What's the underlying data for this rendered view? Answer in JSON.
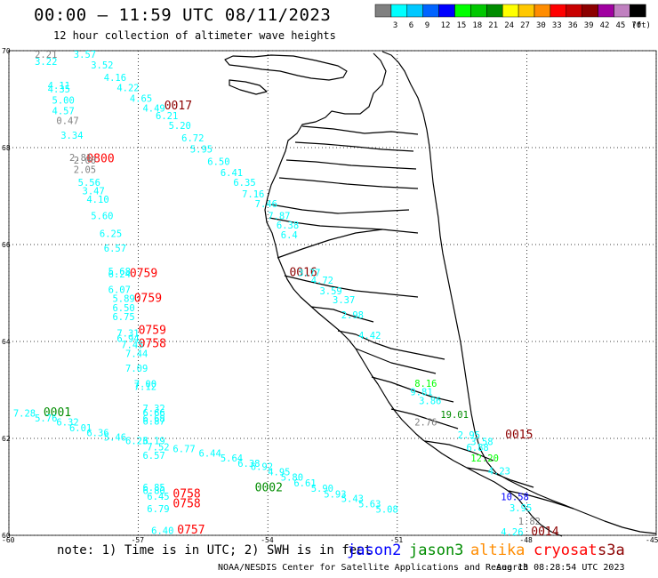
{
  "header": {
    "title": "00:00 – 11:59 UTC 08/11/2023",
    "subtitle": "12 hour collection of altimeter wave heights"
  },
  "colorbar": {
    "unit": "(ft)",
    "bins": [
      {
        "label": "",
        "color": "#808080"
      },
      {
        "label": "3",
        "color": "#00ffff"
      },
      {
        "label": "6",
        "color": "#00c8ff"
      },
      {
        "label": "9",
        "color": "#0064ff"
      },
      {
        "label": "12",
        "color": "#0000ff"
      },
      {
        "label": "15",
        "color": "#00ff00"
      },
      {
        "label": "18",
        "color": "#00c800"
      },
      {
        "label": "21",
        "color": "#008c00"
      },
      {
        "label": "24",
        "color": "#ffff00"
      },
      {
        "label": "27",
        "color": "#ffc800"
      },
      {
        "label": "30",
        "color": "#ff8c00"
      },
      {
        "label": "33",
        "color": "#ff0000"
      },
      {
        "label": "36",
        "color": "#c80000"
      },
      {
        "label": "39",
        "color": "#8c0000"
      },
      {
        "label": "42",
        "color": "#a000a0"
      },
      {
        "label": "45",
        "color": "#c080c0"
      },
      {
        "label": "70",
        "color": "#000000"
      }
    ]
  },
  "map": {
    "lon_range": [
      -60,
      -45
    ],
    "lat_range": [
      60,
      70
    ],
    "lat_ticks": [
      "70",
      "68",
      "66",
      "64",
      "62",
      "60"
    ],
    "lon_ticks": [
      "-60",
      "-57",
      "-54",
      "-51",
      "-48",
      "-45"
    ],
    "grid": "dotted"
  },
  "chart_data": {
    "type": "scatter",
    "time_labels": [
      {
        "text": "0017",
        "lon": -56.4,
        "lat": 68.86,
        "color": "#8c0000"
      },
      {
        "text": "0800",
        "lon": -58.2,
        "lat": 67.77,
        "color": "#ff0000"
      },
      {
        "text": "0016",
        "lon": -53.5,
        "lat": 65.42,
        "color": "#8c0000"
      },
      {
        "text": "0759",
        "lon": -57.2,
        "lat": 65.4,
        "color": "#ff0000"
      },
      {
        "text": "0759",
        "lon": -57.1,
        "lat": 64.89,
        "color": "#ff0000"
      },
      {
        "text": "0759",
        "lon": -57.0,
        "lat": 64.23,
        "color": "#ff0000"
      },
      {
        "text": "0758",
        "lon": -57.0,
        "lat": 63.95,
        "color": "#ff0000"
      },
      {
        "text": "0001",
        "lon": -59.2,
        "lat": 62.53,
        "color": "#008c00"
      },
      {
        "text": "0015",
        "lon": -48.5,
        "lat": 62.07,
        "color": "#8c0000"
      },
      {
        "text": "0002",
        "lon": -54.3,
        "lat": 60.98,
        "color": "#008c00"
      },
      {
        "text": "0758",
        "lon": -56.2,
        "lat": 60.85,
        "color": "#ff0000"
      },
      {
        "text": "0758",
        "lon": -56.2,
        "lat": 60.65,
        "color": "#ff0000"
      },
      {
        "text": "0757",
        "lon": -56.1,
        "lat": 60.11,
        "color": "#ff0000"
      },
      {
        "text": "0014",
        "lon": -47.9,
        "lat": 60.07,
        "color": "#8c0000"
      }
    ],
    "points": [
      {
        "v": "2.21",
        "lon": -59.4,
        "lat": 69.93,
        "c": "#808080"
      },
      {
        "v": "3.57",
        "lon": -58.5,
        "lat": 69.93,
        "c": "#00ffff"
      },
      {
        "v": "3.22",
        "lon": -59.4,
        "lat": 69.78,
        "c": "#00ffff"
      },
      {
        "v": "3.52",
        "lon": -58.1,
        "lat": 69.71,
        "c": "#00ffff"
      },
      {
        "v": "4.16",
        "lon": -57.8,
        "lat": 69.45,
        "c": "#00ffff"
      },
      {
        "v": "4.11",
        "lon": -59.1,
        "lat": 69.28,
        "c": "#00ffff"
      },
      {
        "v": "4.22",
        "lon": -57.5,
        "lat": 69.24,
        "c": "#00ffff"
      },
      {
        "v": "4.35",
        "lon": -59.1,
        "lat": 69.21,
        "c": "#00ffff"
      },
      {
        "v": "5.00",
        "lon": -59.0,
        "lat": 68.98,
        "c": "#00ffff"
      },
      {
        "v": "4.65",
        "lon": -57.2,
        "lat": 69.02,
        "c": "#00ffff"
      },
      {
        "v": "4.49",
        "lon": -56.9,
        "lat": 68.82,
        "c": "#00ffff"
      },
      {
        "v": "4.57",
        "lon": -59.0,
        "lat": 68.76,
        "c": "#00ffff"
      },
      {
        "v": "6.21",
        "lon": -56.6,
        "lat": 68.66,
        "c": "#00ffff"
      },
      {
        "v": "0.47",
        "lon": -58.9,
        "lat": 68.56,
        "c": "#808080"
      },
      {
        "v": "5.20",
        "lon": -56.3,
        "lat": 68.46,
        "c": "#00ffff"
      },
      {
        "v": "3.34",
        "lon": -58.8,
        "lat": 68.26,
        "c": "#00ffff"
      },
      {
        "v": "6.72",
        "lon": -56.0,
        "lat": 68.2,
        "c": "#00ffff"
      },
      {
        "v": "5.95",
        "lon": -55.8,
        "lat": 67.97,
        "c": "#00ffff"
      },
      {
        "v": "2.81",
        "lon": -58.6,
        "lat": 67.8,
        "c": "#808080"
      },
      {
        "v": "2.00",
        "lon": -58.5,
        "lat": 67.74,
        "c": "#808080"
      },
      {
        "v": "6.50",
        "lon": -55.4,
        "lat": 67.72,
        "c": "#00ffff"
      },
      {
        "v": "2.05",
        "lon": -58.5,
        "lat": 67.55,
        "c": "#808080"
      },
      {
        "v": "6.41",
        "lon": -55.1,
        "lat": 67.49,
        "c": "#00ffff"
      },
      {
        "v": "5.56",
        "lon": -58.4,
        "lat": 67.28,
        "c": "#00ffff"
      },
      {
        "v": "6.35",
        "lon": -54.8,
        "lat": 67.28,
        "c": "#00ffff"
      },
      {
        "v": "3.47",
        "lon": -58.3,
        "lat": 67.11,
        "c": "#00ffff"
      },
      {
        "v": "7.16",
        "lon": -54.6,
        "lat": 67.05,
        "c": "#00ffff"
      },
      {
        "v": "4.10",
        "lon": -58.2,
        "lat": 66.94,
        "c": "#00ffff"
      },
      {
        "v": "7.46",
        "lon": -54.3,
        "lat": 66.84,
        "c": "#00ffff"
      },
      {
        "v": "5.60",
        "lon": -58.1,
        "lat": 66.6,
        "c": "#00ffff"
      },
      {
        "v": "7.87",
        "lon": -54.0,
        "lat": 66.6,
        "c": "#00ffff"
      },
      {
        "v": "6.38",
        "lon": -53.8,
        "lat": 66.4,
        "c": "#00ffff"
      },
      {
        "v": "6.25",
        "lon": -57.9,
        "lat": 66.23,
        "c": "#00ffff"
      },
      {
        "v": "6.4",
        "lon": -53.7,
        "lat": 66.2,
        "c": "#00ffff"
      },
      {
        "v": "6.57",
        "lon": -57.8,
        "lat": 65.93,
        "c": "#00ffff"
      },
      {
        "v": "5.68",
        "lon": -57.7,
        "lat": 65.45,
        "c": "#00ffff"
      },
      {
        "v": "6.24",
        "lon": -57.7,
        "lat": 65.39,
        "c": "#00ffff"
      },
      {
        "v": "6.07",
        "lon": -57.7,
        "lat": 65.07,
        "c": "#00ffff"
      },
      {
        "v": "5.89",
        "lon": -57.6,
        "lat": 64.89,
        "c": "#00ffff"
      },
      {
        "v": "6.50",
        "lon": -57.6,
        "lat": 64.7,
        "c": "#00ffff"
      },
      {
        "v": "6.75",
        "lon": -57.6,
        "lat": 64.51,
        "c": "#00ffff"
      },
      {
        "v": "7.31",
        "lon": -57.5,
        "lat": 64.17,
        "c": "#00ffff"
      },
      {
        "v": "6.94",
        "lon": -57.5,
        "lat": 64.06,
        "c": "#00ffff"
      },
      {
        "v": "7.45",
        "lon": -57.4,
        "lat": 63.94,
        "c": "#00ffff"
      },
      {
        "v": "7.44",
        "lon": -57.3,
        "lat": 63.75,
        "c": "#00ffff"
      },
      {
        "v": "7.09",
        "lon": -57.3,
        "lat": 63.45,
        "c": "#00ffff"
      },
      {
        "v": "7.00",
        "lon": -57.1,
        "lat": 63.13,
        "c": "#00ffff"
      },
      {
        "v": "7.12",
        "lon": -57.1,
        "lat": 63.07,
        "c": "#00ffff"
      },
      {
        "v": "7.28",
        "lon": -59.9,
        "lat": 62.52,
        "c": "#00ffff"
      },
      {
        "v": "5.76",
        "lon": -59.4,
        "lat": 62.42,
        "c": "#00ffff"
      },
      {
        "v": "6.32",
        "lon": -58.9,
        "lat": 62.34,
        "c": "#00ffff"
      },
      {
        "v": "7.32",
        "lon": -56.9,
        "lat": 62.62,
        "c": "#00ffff"
      },
      {
        "v": "6.66",
        "lon": -56.9,
        "lat": 62.53,
        "c": "#00ffff"
      },
      {
        "v": "6.68",
        "lon": -56.9,
        "lat": 62.41,
        "c": "#00ffff"
      },
      {
        "v": "6.87",
        "lon": -56.9,
        "lat": 62.36,
        "c": "#00ffff"
      },
      {
        "v": "6.01",
        "lon": -58.6,
        "lat": 62.22,
        "c": "#00ffff"
      },
      {
        "v": "6.36",
        "lon": -58.2,
        "lat": 62.12,
        "c": "#00ffff"
      },
      {
        "v": "5.46",
        "lon": -57.8,
        "lat": 62.03,
        "c": "#00ffff"
      },
      {
        "v": "6.23",
        "lon": -57.3,
        "lat": 61.95,
        "c": "#00ffff"
      },
      {
        "v": "6.19",
        "lon": -56.9,
        "lat": 61.95,
        "c": "#00ffff"
      },
      {
        "v": "7.52",
        "lon": -56.8,
        "lat": 61.83,
        "c": "#00ffff"
      },
      {
        "v": "6.77",
        "lon": -56.2,
        "lat": 61.79,
        "c": "#00ffff"
      },
      {
        "v": "6.44",
        "lon": -55.6,
        "lat": 61.7,
        "c": "#00ffff"
      },
      {
        "v": "6.57",
        "lon": -56.9,
        "lat": 61.65,
        "c": "#00ffff"
      },
      {
        "v": "5.64",
        "lon": -55.1,
        "lat": 61.6,
        "c": "#00ffff"
      },
      {
        "v": "6.38",
        "lon": -54.7,
        "lat": 61.49,
        "c": "#00ffff"
      },
      {
        "v": "6.92",
        "lon": -54.4,
        "lat": 61.42,
        "c": "#00ffff"
      },
      {
        "v": "4.95",
        "lon": -54.0,
        "lat": 61.31,
        "c": "#00ffff"
      },
      {
        "v": "5.80",
        "lon": -53.7,
        "lat": 61.2,
        "c": "#00ffff"
      },
      {
        "v": "6.61",
        "lon": -53.4,
        "lat": 61.08,
        "c": "#00ffff"
      },
      {
        "v": "5.90",
        "lon": -53.0,
        "lat": 60.97,
        "c": "#00ffff"
      },
      {
        "v": "5.93",
        "lon": -52.7,
        "lat": 60.85,
        "c": "#00ffff"
      },
      {
        "v": "5.43",
        "lon": -52.3,
        "lat": 60.76,
        "c": "#00ffff"
      },
      {
        "v": "5.63",
        "lon": -51.9,
        "lat": 60.65,
        "c": "#00ffff"
      },
      {
        "v": "5.08",
        "lon": -51.5,
        "lat": 60.54,
        "c": "#00ffff"
      },
      {
        "v": "6.85",
        "lon": -56.9,
        "lat": 60.99,
        "c": "#00ffff"
      },
      {
        "v": "6.80",
        "lon": -56.9,
        "lat": 60.93,
        "c": "#00ffff"
      },
      {
        "v": "6.45",
        "lon": -56.8,
        "lat": 60.81,
        "c": "#00ffff"
      },
      {
        "v": "6.79",
        "lon": -56.8,
        "lat": 60.55,
        "c": "#00ffff"
      },
      {
        "v": "6.40",
        "lon": -56.7,
        "lat": 60.1,
        "c": "#00ffff"
      },
      {
        "v": "3.77",
        "lon": -53.3,
        "lat": 65.42,
        "c": "#00ffff"
      },
      {
        "v": "4.72",
        "lon": -53.0,
        "lat": 65.27,
        "c": "#00ffff"
      },
      {
        "v": "3.59",
        "lon": -52.8,
        "lat": 65.05,
        "c": "#00ffff"
      },
      {
        "v": "3.37",
        "lon": -52.5,
        "lat": 64.86,
        "c": "#00ffff"
      },
      {
        "v": "2.98",
        "lon": -52.3,
        "lat": 64.55,
        "c": "#00ffff"
      },
      {
        "v": "4.42",
        "lon": -51.9,
        "lat": 64.13,
        "c": "#00ffff"
      },
      {
        "v": "8.16",
        "lon": -50.6,
        "lat": 63.14,
        "c": "#00ff00"
      },
      {
        "v": "9.81",
        "lon": -50.7,
        "lat": 62.96,
        "c": "#00ffff"
      },
      {
        "v": "3.86",
        "lon": -50.5,
        "lat": 62.78,
        "c": "#00ffff"
      },
      {
        "v": "19.01",
        "lon": -50.0,
        "lat": 62.5,
        "c": "#008c00"
      },
      {
        "v": "2.76",
        "lon": -50.6,
        "lat": 62.34,
        "c": "#808080"
      },
      {
        "v": "2.95",
        "lon": -49.6,
        "lat": 62.07,
        "c": "#00ffff"
      },
      {
        "v": "3.58",
        "lon": -49.3,
        "lat": 61.94,
        "c": "#00ffff"
      },
      {
        "v": "6.88",
        "lon": -49.4,
        "lat": 61.82,
        "c": "#00ffff"
      },
      {
        "v": "12.20",
        "lon": -49.3,
        "lat": 61.6,
        "c": "#00ff00"
      },
      {
        "v": "4.23",
        "lon": -48.9,
        "lat": 61.33,
        "c": "#00ffff"
      },
      {
        "v": "10.58",
        "lon": -48.6,
        "lat": 60.8,
        "c": "#0000ff"
      },
      {
        "v": "3.95",
        "lon": -48.4,
        "lat": 60.57,
        "c": "#00ffff"
      },
      {
        "v": "1.82",
        "lon": -48.2,
        "lat": 60.29,
        "c": "#808080"
      },
      {
        "v": "4.26",
        "lon": -48.6,
        "lat": 60.07,
        "c": "#00ffff"
      }
    ]
  },
  "footer": {
    "note": "note: 1) Time is in UTC; 2) SWH is in feet",
    "satellites": [
      {
        "name": "jason2",
        "color": "#0000ff"
      },
      {
        "name": "jason3",
        "color": "#008c00"
      },
      {
        "name": "altika",
        "color": "#ff8c00"
      },
      {
        "name": "cryosat",
        "color": "#ff0000"
      },
      {
        "name": "s3a",
        "color": "#8c0000"
      }
    ],
    "credit": "NOAA/NESDIS Center for Satellite Applications and Research",
    "timestamp": "Aug 13 08:28:54 UTC 2023"
  }
}
